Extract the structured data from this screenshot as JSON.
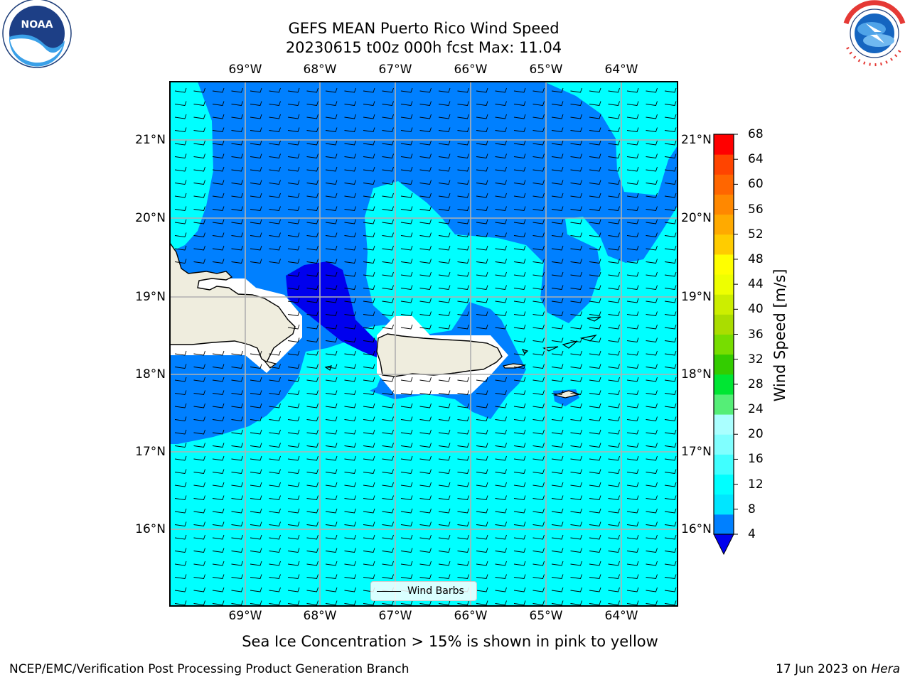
{
  "title": {
    "line1": "GEFS MEAN Puerto Rico Wind Speed",
    "line2": "20230615 t00z 000h fcst   Max: 11.04"
  },
  "lon_ticks": [
    "69°W",
    "68°W",
    "67°W",
    "66°W",
    "65°W",
    "64°W"
  ],
  "lat_ticks": [
    "21°N",
    "20°N",
    "19°N",
    "18°N",
    "17°N",
    "16°N"
  ],
  "colorbar": {
    "label": "Wind Speed [m/s]",
    "ticks": [
      "4",
      "8",
      "12",
      "16",
      "20",
      "24",
      "28",
      "32",
      "36",
      "40",
      "44",
      "48",
      "52",
      "56",
      "60",
      "64",
      "68"
    ],
    "colors": [
      "#0080ff",
      "#00e6ff",
      "#00ffff",
      "#40ffff",
      "#80ffff",
      "#aaffff",
      "#55ee77",
      "#00e633",
      "#33cc00",
      "#77dd00",
      "#aadd00",
      "#ccee00",
      "#eeff00",
      "#ffff00",
      "#ffcc00",
      "#ffaa00",
      "#ff8800",
      "#ff6600",
      "#ff4400",
      "#ff0000"
    ],
    "under_color": "#0000ee"
  },
  "legend": {
    "label": "Wind Barbs"
  },
  "caption": "Sea Ice Concentration > 15% is shown in pink to yellow",
  "footer": {
    "left": "NCEP/EMC/Verification Post Processing Product Generation Branch",
    "right_prefix": "17 Jun 2023 on ",
    "right_machine": "Hera"
  },
  "map": {
    "region": "Puerto Rico",
    "variable": "Wind Speed",
    "units": "m/s",
    "lon_range": [
      -70.0,
      -63.25
    ],
    "lat_range": [
      15.0,
      21.75
    ],
    "land_color": "#efedde",
    "ocean_colors": {
      "4-8": "#0080ff",
      "8-12": "#00ffff",
      "below-4": "#0000ee"
    }
  },
  "logos": {
    "left": {
      "name": "NOAA",
      "ring_text": "NATIONAL OCEANIC AND ATMOSPHERIC ADMINISTRATION · U.S. DEPARTMENT OF COMMERCE"
    },
    "right": {
      "name": "NATIONAL WEATHER SERVICE"
    }
  }
}
